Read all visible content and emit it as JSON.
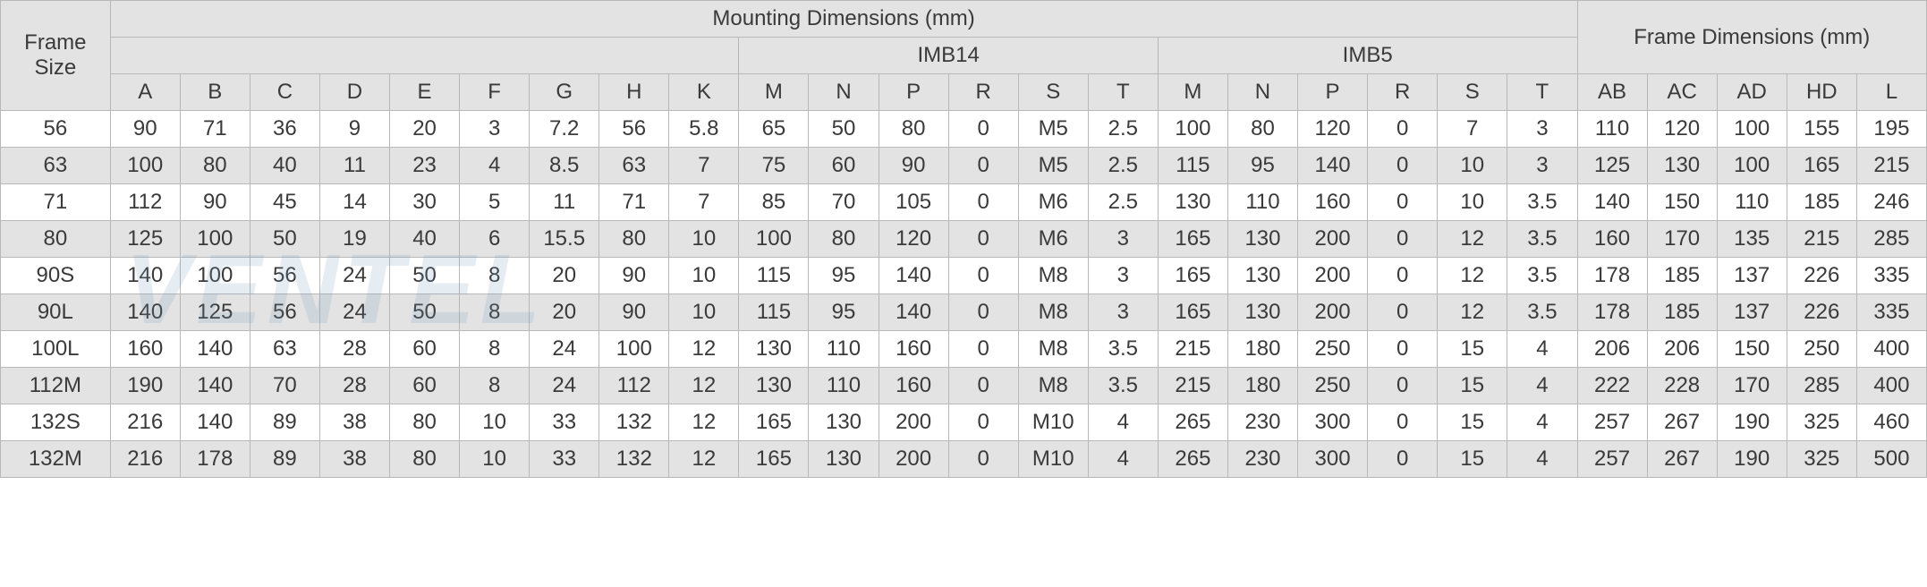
{
  "title_mounting": "Mounting Dimensions (mm)",
  "title_frame_dim": "Frame Dimensions (mm)",
  "title_frame_size": "Frame\nSize",
  "group_imb14": "IMB14",
  "group_imb5": "IMB5",
  "cols_base": [
    "A",
    "B",
    "C",
    "D",
    "E",
    "F",
    "G",
    "H",
    "K"
  ],
  "cols_imb14": [
    "M",
    "N",
    "P",
    "R",
    "S",
    "T"
  ],
  "cols_imb5": [
    "M",
    "N",
    "P",
    "R",
    "S",
    "T"
  ],
  "cols_frame": [
    "AB",
    "AC",
    "AD",
    "HD",
    "L"
  ],
  "rows": [
    {
      "size": "56",
      "base": [
        "90",
        "71",
        "36",
        "9",
        "20",
        "3",
        "7.2",
        "56",
        "5.8"
      ],
      "imb14": [
        "65",
        "50",
        "80",
        "0",
        "M5",
        "2.5"
      ],
      "imb5": [
        "100",
        "80",
        "120",
        "0",
        "7",
        "3"
      ],
      "frame": [
        "110",
        "120",
        "100",
        "155",
        "195"
      ]
    },
    {
      "size": "63",
      "base": [
        "100",
        "80",
        "40",
        "11",
        "23",
        "4",
        "8.5",
        "63",
        "7"
      ],
      "imb14": [
        "75",
        "60",
        "90",
        "0",
        "M5",
        "2.5"
      ],
      "imb5": [
        "115",
        "95",
        "140",
        "0",
        "10",
        "3"
      ],
      "frame": [
        "125",
        "130",
        "100",
        "165",
        "215"
      ]
    },
    {
      "size": "71",
      "base": [
        "112",
        "90",
        "45",
        "14",
        "30",
        "5",
        "11",
        "71",
        "7"
      ],
      "imb14": [
        "85",
        "70",
        "105",
        "0",
        "M6",
        "2.5"
      ],
      "imb5": [
        "130",
        "110",
        "160",
        "0",
        "10",
        "3.5"
      ],
      "frame": [
        "140",
        "150",
        "110",
        "185",
        "246"
      ]
    },
    {
      "size": "80",
      "base": [
        "125",
        "100",
        "50",
        "19",
        "40",
        "6",
        "15.5",
        "80",
        "10"
      ],
      "imb14": [
        "100",
        "80",
        "120",
        "0",
        "M6",
        "3"
      ],
      "imb5": [
        "165",
        "130",
        "200",
        "0",
        "12",
        "3.5"
      ],
      "frame": [
        "160",
        "170",
        "135",
        "215",
        "285"
      ]
    },
    {
      "size": "90S",
      "base": [
        "140",
        "100",
        "56",
        "24",
        "50",
        "8",
        "20",
        "90",
        "10"
      ],
      "imb14": [
        "115",
        "95",
        "140",
        "0",
        "M8",
        "3"
      ],
      "imb5": [
        "165",
        "130",
        "200",
        "0",
        "12",
        "3.5"
      ],
      "frame": [
        "178",
        "185",
        "137",
        "226",
        "335"
      ]
    },
    {
      "size": "90L",
      "base": [
        "140",
        "125",
        "56",
        "24",
        "50",
        "8",
        "20",
        "90",
        "10"
      ],
      "imb14": [
        "115",
        "95",
        "140",
        "0",
        "M8",
        "3"
      ],
      "imb5": [
        "165",
        "130",
        "200",
        "0",
        "12",
        "3.5"
      ],
      "frame": [
        "178",
        "185",
        "137",
        "226",
        "335"
      ]
    },
    {
      "size": "100L",
      "base": [
        "160",
        "140",
        "63",
        "28",
        "60",
        "8",
        "24",
        "100",
        "12"
      ],
      "imb14": [
        "130",
        "110",
        "160",
        "0",
        "M8",
        "3.5"
      ],
      "imb5": [
        "215",
        "180",
        "250",
        "0",
        "15",
        "4"
      ],
      "frame": [
        "206",
        "206",
        "150",
        "250",
        "400"
      ]
    },
    {
      "size": "112M",
      "base": [
        "190",
        "140",
        "70",
        "28",
        "60",
        "8",
        "24",
        "112",
        "12"
      ],
      "imb14": [
        "130",
        "110",
        "160",
        "0",
        "M8",
        "3.5"
      ],
      "imb5": [
        "215",
        "180",
        "250",
        "0",
        "15",
        "4"
      ],
      "frame": [
        "222",
        "228",
        "170",
        "285",
        "400"
      ]
    },
    {
      "size": "132S",
      "base": [
        "216",
        "140",
        "89",
        "38",
        "80",
        "10",
        "33",
        "132",
        "12"
      ],
      "imb14": [
        "165",
        "130",
        "200",
        "0",
        "M10",
        "4"
      ],
      "imb5": [
        "265",
        "230",
        "300",
        "0",
        "15",
        "4"
      ],
      "frame": [
        "257",
        "267",
        "190",
        "325",
        "460"
      ]
    },
    {
      "size": "132M",
      "base": [
        "216",
        "178",
        "89",
        "38",
        "80",
        "10",
        "33",
        "132",
        "12"
      ],
      "imb14": [
        "165",
        "130",
        "200",
        "0",
        "M10",
        "4"
      ],
      "imb5": [
        "265",
        "230",
        "300",
        "0",
        "15",
        "4"
      ],
      "frame": [
        "257",
        "267",
        "190",
        "325",
        "500"
      ]
    }
  ],
  "watermark": "VENTEL",
  "colors": {
    "header_bg": "#e3e3e3",
    "row_alt_bg": "#e3e3e3",
    "row_bg": "#ffffff",
    "border": "#b8b8b8",
    "text": "#3a3a3a",
    "watermark": "rgba(110,150,185,0.18)"
  },
  "fontsize_cell": 24,
  "fontsize_watermark": 110
}
